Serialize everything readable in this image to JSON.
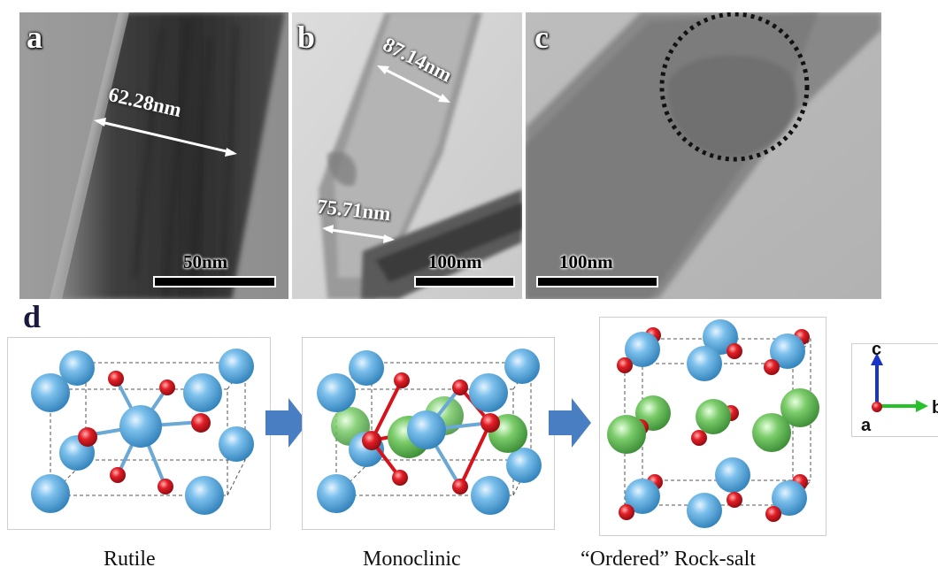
{
  "tem_panels": [
    {
      "label": "a",
      "measurements": [
        "62.28nm"
      ],
      "scalebar": "50nm"
    },
    {
      "label": "b",
      "measurements": [
        "87.14nm",
        "75.71nm"
      ],
      "scalebar": "100nm"
    },
    {
      "label": "c",
      "measurements": [],
      "scalebar": "100nm"
    }
  ],
  "structure_panel_label": "d",
  "structures": [
    {
      "caption": "Rutile"
    },
    {
      "caption": "Monoclinic"
    },
    {
      "caption": "“Ordered” Rock-salt"
    }
  ],
  "axes": {
    "c": "c",
    "b": "b",
    "a": "a"
  },
  "colors": {
    "large_atom": "#5aa9de",
    "small_atom": "#d8121b",
    "green_atom": "#69be5e",
    "transition_arrow": "#4a7ec3",
    "tem_background": "#a9a9a9"
  },
  "icons": {
    "transition_arrow": "right-block-arrow-icon"
  }
}
